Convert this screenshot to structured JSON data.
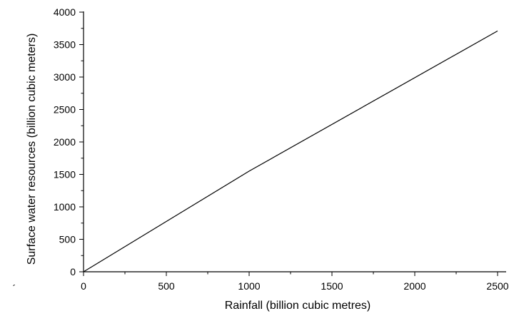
{
  "chart_data": {
    "type": "line",
    "title": "",
    "xlabel": "Rainfall (billion cubic metres)",
    "ylabel": "Surface water resources (billion cubic meters)",
    "xlim": [
      0,
      2500
    ],
    "ylim": [
      0,
      4000
    ],
    "x_ticks": [
      "0",
      "500",
      "1000",
      "1500",
      "2000",
      "2500"
    ],
    "y_ticks": [
      "0",
      "500",
      "1000",
      "1500",
      "2000",
      "2500",
      "3000",
      "3500",
      "4000"
    ],
    "grid": false,
    "legend": "none",
    "series": [
      {
        "x": [
          0,
          1000,
          2500
        ],
        "y": [
          0,
          1550,
          3710
        ]
      }
    ],
    "stray_mark": "´",
    "colors": {
      "line": "#000000",
      "axis": "#000000"
    }
  }
}
